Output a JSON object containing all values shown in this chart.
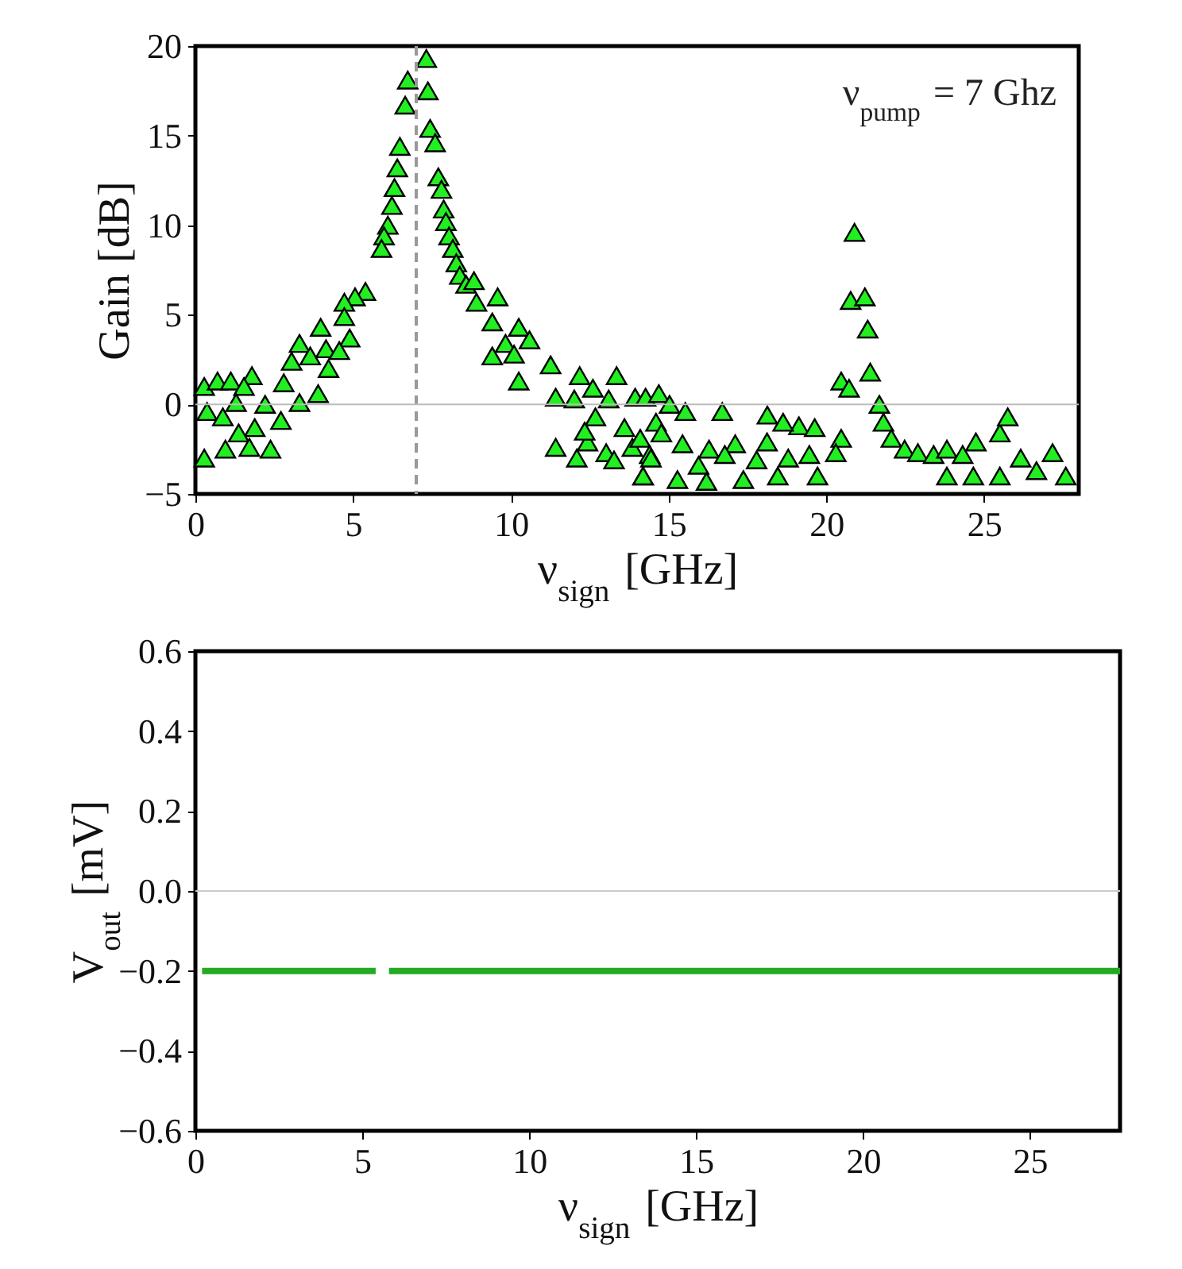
{
  "chart_data": [
    {
      "type": "scatter",
      "xlabel": "ν$_{sign}$ [GHz]",
      "ylabel": "Gain [dB]",
      "xlim": [
        0,
        28
      ],
      "ylim": [
        -5,
        20
      ],
      "xticks": [
        0,
        5,
        10,
        15,
        20,
        25
      ],
      "yticks": [
        {
          "value": -5,
          "label": "−5"
        },
        0,
        5,
        10,
        15,
        20
      ],
      "marker": "triangle",
      "grid": false,
      "annotations": [
        "ν$_{pump}$ = 7 Ghz"
      ],
      "ref_lines": [
        {
          "axis": "x",
          "value": 7,
          "color": "#999999",
          "line_style": "dashed"
        },
        {
          "axis": "y",
          "value": 0,
          "color": "#bbbbbb",
          "line_style": "solid"
        }
      ],
      "series": [
        {
          "color": "#22ee22",
          "x": [
            7.32,
            6.73,
            7.37,
            6.65,
            7.44,
            7.6,
            6.48,
            6.4,
            7.7,
            6.31,
            7.8,
            6.23,
            7.87,
            6.1,
            7.94,
            5.98,
            8.04,
            5.9,
            8.16,
            8.27,
            8.38,
            5.39,
            5.06,
            4.72,
            8.58,
            8.83,
            9.58,
            8.91,
            9.41,
            10.25,
            3.97,
            4.72,
            4.89,
            3.3,
            4.14,
            9.83,
            10.59,
            4.56,
            10.1,
            3.64,
            9.41,
            4.22,
            3.05,
            11.26,
            12.18,
            13.35,
            10.25,
            1.79,
            0.28,
            0.7,
            1.12,
            1.54,
            2.8,
            3.89,
            3.3,
            1.29,
            0.37,
            2.21,
            11.42,
            12.01,
            12.6,
            13.1,
            13.94,
            14.27,
            2.71,
            0.87,
            1.88,
            1.37,
            12.68,
            13.6,
            14.6,
            11.42,
            0.28,
            0.95,
            1.71,
            2.38,
            12.43,
            12.09,
            13.02,
            13.27,
            13.85,
            14.4,
            14.19,
            12.34,
            20.89,
            20.77,
            21.22,
            21.31,
            20.47,
            20.72,
            21.39,
            21.68,
            21.81,
            22.06,
            22.48,
            22.9,
            23.4,
            23.82,
            24.32,
            24.74,
            25.5,
            25.75,
            26.16,
            26.66,
            27.17,
            27.59,
            24.66,
            25.5,
            23.82,
            14.69,
            15.03,
            15.53,
            16.7,
            18.13,
            19.13,
            14.1,
            14.77,
            15.44,
            16.28,
            17.11,
            18.12,
            18.63,
            19.63,
            20.47,
            14.44,
            15.95,
            16.78,
            17.79,
            18.79,
            19.46,
            20.3,
            14.19,
            15.28,
            16.2,
            17.37,
            18.46,
            19.72
          ],
          "values": [
            19.3,
            18.1,
            17.5,
            16.7,
            15.4,
            14.6,
            14.4,
            13.2,
            12.7,
            12.1,
            12.0,
            11.1,
            10.9,
            10.0,
            10.2,
            9.4,
            9.4,
            8.7,
            8.7,
            7.9,
            7.2,
            6.3,
            6.0,
            5.7,
            6.7,
            6.9,
            6.0,
            5.7,
            4.6,
            4.3,
            4.3,
            4.9,
            3.7,
            3.4,
            3.1,
            3.4,
            3.6,
            3.0,
            2.8,
            2.7,
            2.7,
            2.0,
            2.4,
            2.2,
            1.6,
            1.6,
            1.3,
            1.6,
            1.0,
            1.3,
            1.3,
            1.0,
            1.2,
            0.6,
            0.1,
            0.1,
            -0.4,
            0.0,
            0.4,
            0.3,
            0.9,
            0.3,
            0.4,
            0.4,
            -0.9,
            -0.7,
            -1.3,
            -1.6,
            -0.7,
            -1.3,
            -1.0,
            -2.4,
            -3.0,
            -2.5,
            -2.4,
            -2.5,
            -2.1,
            -3.0,
            -2.7,
            -3.1,
            -2.4,
            -2.8,
            -4.0,
            -1.5,
            9.6,
            5.8,
            6.0,
            4.2,
            1.3,
            0.9,
            1.8,
            0.0,
            -1.0,
            -1.9,
            -2.5,
            -2.7,
            -2.8,
            -2.5,
            -2.8,
            -2.1,
            -1.6,
            -0.7,
            -3.0,
            -3.7,
            -2.7,
            -4.0,
            -4.0,
            -4.0,
            -4.0,
            0.6,
            0.0,
            -0.4,
            -0.4,
            -0.6,
            -1.2,
            -1.9,
            -1.6,
            -2.2,
            -2.5,
            -2.2,
            -2.1,
            -1.0,
            -1.3,
            -1.9,
            -3.0,
            -3.4,
            -2.8,
            -3.1,
            -3.0,
            -2.8,
            -2.7,
            -4.0,
            -4.2,
            -4.3,
            -4.2,
            -4.0,
            -4.0
          ]
        }
      ]
    },
    {
      "type": "line",
      "xlabel": "ν$_{sign}$ [GHz]",
      "ylabel": "V$_{out}$ [mV]",
      "xlim": [
        0,
        27.7
      ],
      "ylim": [
        -0.6,
        0.6
      ],
      "xticks": [
        0,
        5,
        10,
        15,
        20,
        25
      ],
      "yticks": [
        {
          "value": -0.6,
          "label": "−0.6"
        },
        {
          "value": -0.4,
          "label": "−0.4"
        },
        {
          "value": -0.2,
          "label": "−0.2"
        },
        {
          "value": 0,
          "label": "0.0"
        },
        0.2,
        0.4,
        0.6
      ],
      "grid": false,
      "line_style": "solid",
      "ref_lines": [
        {
          "axis": "y",
          "value": 0,
          "color": "#cccccc",
          "line_style": "solid"
        }
      ],
      "series": [
        {
          "color": "#22aa22",
          "x": [
            0.2,
            2.5,
            5.4
          ],
          "values": [
            -0.2,
            -0.2,
            -0.2
          ]
        },
        {
          "color": "#22aa22",
          "x": [
            5.8,
            10.5,
            27.7
          ],
          "values": [
            -0.2,
            -0.2,
            -0.2
          ]
        }
      ]
    }
  ]
}
